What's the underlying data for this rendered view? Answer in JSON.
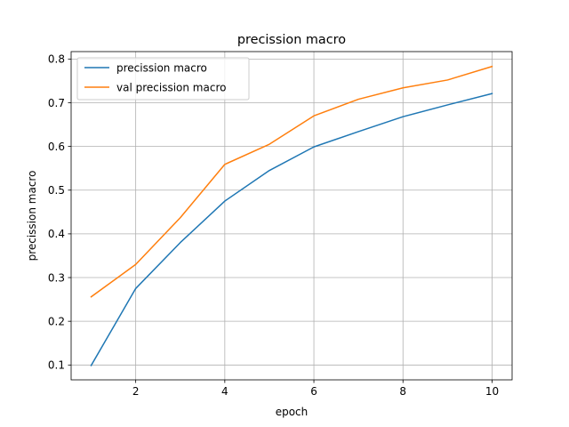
{
  "chart_data": {
    "type": "line",
    "title": "precission macro",
    "xlabel": "epoch",
    "ylabel": "precission macro",
    "x": [
      1,
      2,
      3,
      4,
      5,
      6,
      7,
      8,
      9,
      10
    ],
    "series": [
      {
        "name": "precission macro",
        "color": "#1f77b4",
        "values": [
          0.099,
          0.275,
          0.38,
          0.475,
          0.545,
          0.599,
          0.634,
          0.668,
          0.695,
          0.721
        ]
      },
      {
        "name": "val precission macro",
        "color": "#ff7f0e",
        "values": [
          0.256,
          0.33,
          0.437,
          0.559,
          0.605,
          0.67,
          0.708,
          0.734,
          0.752,
          0.783
        ]
      }
    ],
    "xlim": [
      0.55,
      10.45
    ],
    "ylim": [
      0.066,
      0.817
    ],
    "xticks": [
      2,
      4,
      6,
      8,
      10
    ],
    "yticks": [
      0.1,
      0.2,
      0.3,
      0.4,
      0.5,
      0.6,
      0.7,
      0.8
    ],
    "xtick_labels": [
      "2",
      "4",
      "6",
      "8",
      "10"
    ],
    "ytick_labels": [
      "0.1",
      "0.2",
      "0.3",
      "0.4",
      "0.5",
      "0.6",
      "0.7",
      "0.8"
    ],
    "grid": true,
    "legend_position": "upper-left"
  }
}
